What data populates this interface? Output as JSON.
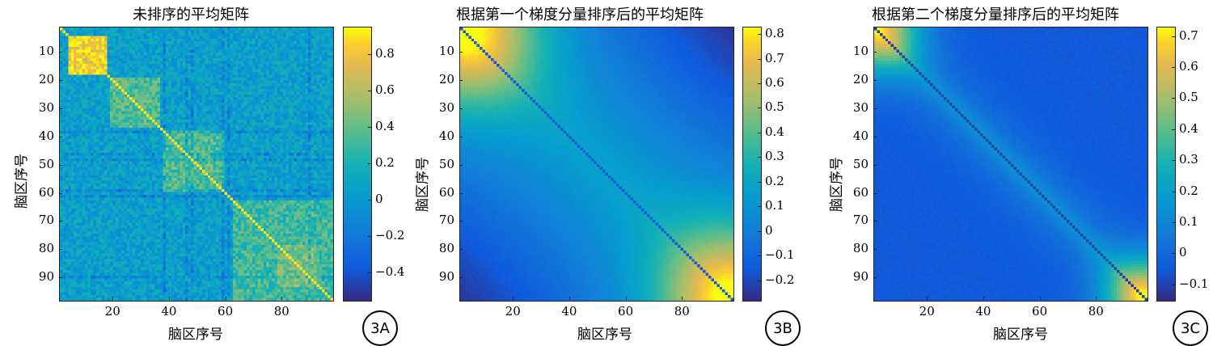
{
  "chart_data": [
    {
      "type": "heatmap",
      "title": "未排序的平均矩阵",
      "xlabel": "脑区序号",
      "ylabel": "脑区序号",
      "xlim": [
        1,
        98
      ],
      "ylim": [
        1,
        98
      ],
      "x_ticks": [
        20,
        40,
        60,
        80
      ],
      "y_ticks": [
        10,
        20,
        30,
        40,
        50,
        60,
        70,
        80,
        90
      ],
      "colorbar": {
        "range": [
          -0.55,
          0.95
        ],
        "ticks": [
          -0.4,
          -0.2,
          0,
          0.2,
          0.4,
          0.6,
          0.8
        ],
        "tick_labels": [
          "−0.4",
          "−0.2",
          "0",
          "0.2",
          "0.4",
          "0.6",
          "0.8"
        ]
      },
      "colormap": "parula",
      "pattern": "unsorted noisy matrix with block clusters (regions ~3-16, ~20-35, ~37-58, ~62-97)",
      "label": "3A"
    },
    {
      "type": "heatmap",
      "title": "根据第一个梯度分量排序后的平均矩阵",
      "xlabel": "脑区序号",
      "ylabel": "脑区序号",
      "xlim": [
        1,
        98
      ],
      "ylim": [
        1,
        98
      ],
      "x_ticks": [
        20,
        40,
        60,
        80
      ],
      "y_ticks": [
        10,
        20,
        30,
        40,
        50,
        60,
        70,
        80,
        90
      ],
      "colorbar": {
        "range": [
          -0.28,
          0.83
        ],
        "ticks": [
          -0.2,
          -0.1,
          0,
          0.1,
          0.2,
          0.3,
          0.4,
          0.5,
          0.6,
          0.7,
          0.8
        ],
        "tick_labels": [
          "−0.2",
          "−0.1",
          "0",
          "0.1",
          "0.2",
          "0.3",
          "0.4",
          "0.5",
          "0.6",
          "0.7",
          "0.8"
        ]
      },
      "colormap": "parula",
      "pattern": "smooth, high at both diagonal corners, low off-diagonal corners",
      "label": "3B"
    },
    {
      "type": "heatmap",
      "title": "根据第二个梯度分量排序后的平均矩阵",
      "xlabel": "脑区序号",
      "ylabel": "脑区序号",
      "xlim": [
        1,
        98
      ],
      "ylim": [
        1,
        98
      ],
      "x_ticks": [
        20,
        40,
        60,
        80
      ],
      "y_ticks": [
        10,
        20,
        30,
        40,
        50,
        60,
        70,
        80,
        90
      ],
      "colorbar": {
        "range": [
          -0.15,
          0.73
        ],
        "ticks": [
          -0.1,
          0,
          0.1,
          0.2,
          0.3,
          0.4,
          0.5,
          0.6,
          0.7
        ],
        "tick_labels": [
          "−0.1",
          "0",
          "0.1",
          "0.2",
          "0.3",
          "0.4",
          "0.5",
          "0.6",
          "0.7"
        ]
      },
      "colormap": "parula",
      "pattern": "band along diagonal, bright at both diagonal ends",
      "label": "3C"
    }
  ]
}
